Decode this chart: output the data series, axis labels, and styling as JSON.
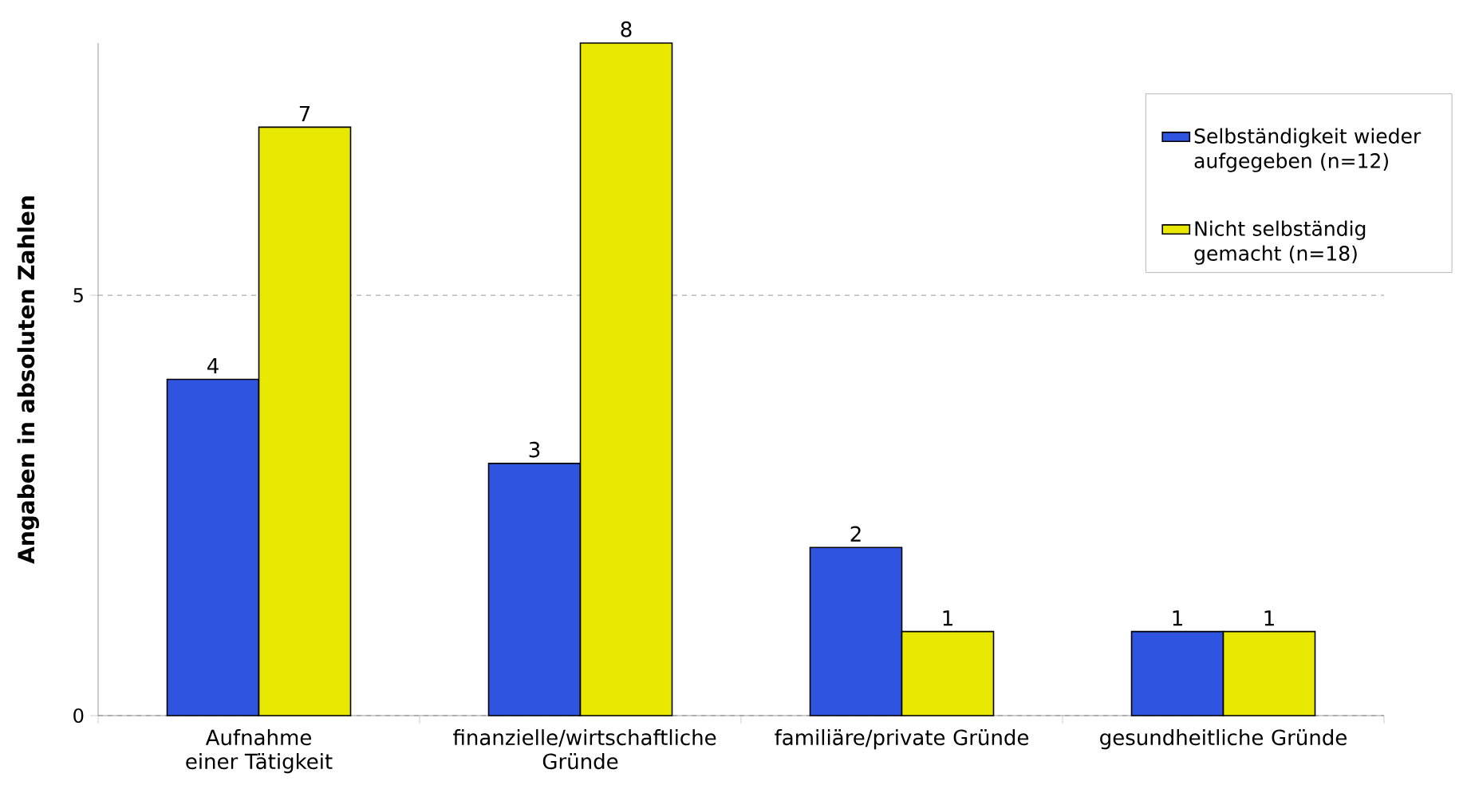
{
  "chart_data": {
    "type": "bar",
    "ylabel": "Angaben in absoluten Zahlen",
    "categories": [
      "Aufnahme einer Tätigkeit",
      "finanzielle/wirtschaftliche Gründe",
      "familiäre/private Gründe",
      "gesundheitliche Gründe"
    ],
    "series": [
      {
        "name": "Selbständigkeit wieder aufgegeben (n=12)",
        "color": "#2f55e0",
        "values": [
          4,
          3,
          2,
          1
        ]
      },
      {
        "name": "Nicht selbständig gemacht (n=18)",
        "color": "#e8e800",
        "values": [
          7,
          8,
          1,
          1
        ]
      }
    ],
    "ylim": [
      0,
      8
    ],
    "yticks": [
      0,
      5
    ],
    "grid": "y",
    "legend": "top right",
    "data_labels": true
  }
}
